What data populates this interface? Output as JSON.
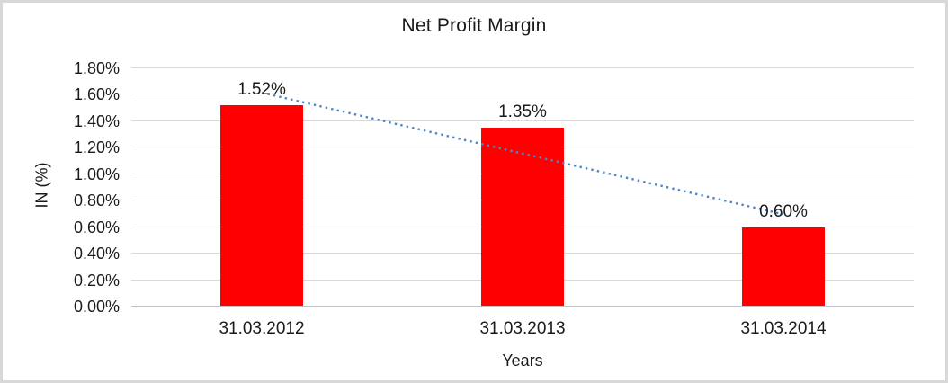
{
  "chart_data": {
    "type": "bar",
    "title": "Net Profit Margin",
    "xlabel": "Years",
    "ylabel": "IN (%)",
    "categories": [
      "31.03.2012",
      "31.03.2013",
      "31.03.2014"
    ],
    "values": [
      1.52,
      1.35,
      0.6
    ],
    "data_labels": [
      "1.52%",
      "1.35%",
      "0.60%"
    ],
    "y_ticks": [
      {
        "v": 0.0,
        "label": "0.00%"
      },
      {
        "v": 0.2,
        "label": "0.20%"
      },
      {
        "v": 0.4,
        "label": "0.40%"
      },
      {
        "v": 0.6,
        "label": "0.60%"
      },
      {
        "v": 0.8,
        "label": "0.80%"
      },
      {
        "v": 1.0,
        "label": "1.00%"
      },
      {
        "v": 1.2,
        "label": "1.20%"
      },
      {
        "v": 1.4,
        "label": "1.40%"
      },
      {
        "v": 1.6,
        "label": "1.60%"
      },
      {
        "v": 1.8,
        "label": "1.80%"
      }
    ],
    "ylim": [
      0,
      1.8
    ],
    "grid": true,
    "legend": false,
    "bar_color": "#FF0000",
    "gridline_color": "#D9D9D9",
    "axis_line_color": "#C4C4C4",
    "text_color": "#1A1A1A",
    "trendline": {
      "type": "linear",
      "style": "dotted",
      "color": "#4E86C8"
    }
  }
}
